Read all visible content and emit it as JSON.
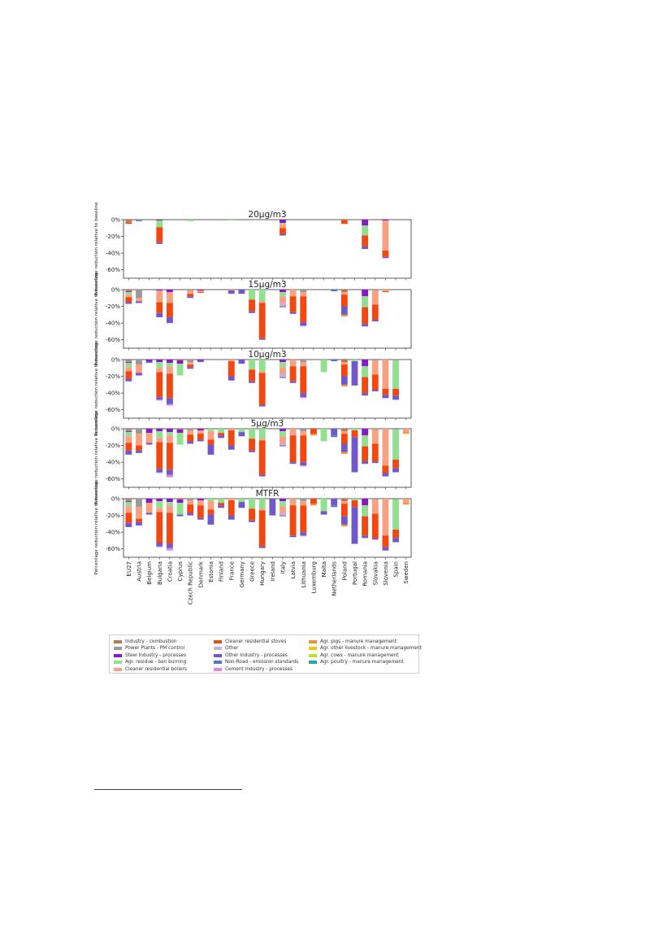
{
  "chart_data": {
    "type": "bar",
    "stacked": true,
    "countries": [
      "EU27",
      "Austria",
      "Belgium",
      "Bulgaria",
      "Croatia",
      "Cyprus",
      "Czech Republic",
      "Denmark",
      "Estonia",
      "Finland",
      "France",
      "Germany",
      "Greece",
      "Hungary",
      "Ireland",
      "Italy",
      "Latvia",
      "Lithuania",
      "Luxemburg",
      "Malta",
      "Netherlands",
      "Poland",
      "Portugal",
      "Romania",
      "Slovakia",
      "Slovenia",
      "Spain",
      "Sweden"
    ],
    "sources": [
      {
        "key": "ind",
        "name": "Industry - combustion",
        "color": "#c4744a"
      },
      {
        "key": "pp",
        "name": "Power Plants - PM control",
        "color": "#9a9a9a"
      },
      {
        "key": "steel",
        "name": "Steel Industry - processes",
        "color": "#8a17c9"
      },
      {
        "key": "agres",
        "name": "Agr. residue - ban burning",
        "color": "#90e08e"
      },
      {
        "key": "boil",
        "name": "Cleaner residential boilers",
        "color": "#f9a080"
      },
      {
        "key": "stove",
        "name": "Cleaner residential stoves",
        "color": "#f4470f"
      },
      {
        "key": "other",
        "name": "Other",
        "color": "#c8b0d8"
      },
      {
        "key": "oind",
        "name": "Other Industry - processes",
        "color": "#7057cc"
      },
      {
        "key": "nonroad",
        "name": "Non-Road - emission standards",
        "color": "#4e78c4"
      },
      {
        "key": "cement",
        "name": "Cement Industry - processes",
        "color": "#e184e8"
      },
      {
        "key": "pigs",
        "name": "Agr. pigs - manure management",
        "color": "#ef9330"
      },
      {
        "key": "olive",
        "name": "Agr. other livestock - manure management",
        "color": "#f2c617"
      },
      {
        "key": "cows",
        "name": "Agr. cows - manure management",
        "color": "#b5e630"
      },
      {
        "key": "poultry",
        "name": "Agr. poultry - manure management",
        "color": "#22a9a5"
      }
    ],
    "yticks": [
      "0%",
      "-20%",
      "-40%",
      "-60%"
    ],
    "ylim": [
      -70,
      0
    ],
    "panels": [
      {
        "title": "20µg/m3",
        "ylabel": "Percentage reduction relative to baseline",
        "bars": [
          {
            "ind": 2,
            "pp": 1,
            "stove": 2
          },
          {
            "pp": 1,
            "nonroad": 1
          },
          {},
          {
            "steel": 1,
            "agres": 8,
            "stove": 18,
            "oind": 2
          },
          {},
          {},
          {
            "agres": 2
          },
          {},
          {},
          {},
          {
            "agres": 1
          },
          {},
          {},
          {},
          {},
          {
            "steel": 4,
            "boil": 4,
            "agres": 2,
            "stove": 7,
            "oind": 2
          },
          {},
          {},
          {},
          {},
          {},
          {
            "ind": 1,
            "stove": 4
          },
          {},
          {
            "steel": 7,
            "agres": 12,
            "stove": 13,
            "oind": 3
          },
          {},
          {
            "steel": 1,
            "boil": 36,
            "stove": 7,
            "oind": 2
          },
          {},
          {}
        ]
      },
      {
        "title": "15µg/m3",
        "ylabel": "Percentage reduction relative to baseline",
        "bars": [
          {
            "ind": 1,
            "pp": 1,
            "steel": 1,
            "agres": 3,
            "boil": 3,
            "stove": 6,
            "oind": 2
          },
          {
            "pp": 10,
            "boil": 4,
            "oind": 2
          },
          {},
          {
            "steel": 1,
            "boil": 14,
            "stove": 13,
            "oind": 5
          },
          {
            "steel": 3,
            "boil": 13,
            "stove": 17,
            "oind": 7
          },
          {},
          {
            "pp": 1,
            "boil": 4,
            "stove": 3,
            "oind": 2
          },
          {
            "steel": 1,
            "boil": 2,
            "stove": 1
          },
          {},
          {},
          {
            "boil": 1,
            "oind": 4
          },
          {
            "oind": 5
          },
          {
            "agres": 12,
            "stove": 14,
            "oind": 2
          },
          {
            "boil": 2,
            "agres": 14,
            "stove": 42,
            "oind": 2
          },
          {},
          {
            "steel": 3,
            "boil": 8,
            "agres": 5,
            "other": 4,
            "oind": 1
          },
          {
            "boil": 8,
            "stove": 19,
            "oind": 2
          },
          {
            "pp": 3,
            "boil": 5,
            "stove": 31,
            "oind": 4,
            "cement": 1
          },
          {},
          {},
          {
            "nonroad": 2
          },
          {
            "ind": 3,
            "boil": 3,
            "stove": 14,
            "oind": 10,
            "pigs": 2
          },
          {},
          {
            "steel": 8,
            "agres": 13,
            "stove": 20,
            "oind": 3
          },
          {
            "pp": 1,
            "boil": 17,
            "stove": 18,
            "oind": 2
          },
          {
            "boil": 2,
            "stove": 1
          },
          {},
          {}
        ]
      },
      {
        "title": "10µg/m3",
        "ylabel": "Percentage reduction relative to baseline",
        "bars": [
          {
            "ind": 1,
            "pp": 2,
            "steel": 1,
            "agres": 5,
            "boil": 5,
            "stove": 9,
            "oind": 3
          },
          {
            "pp": 6,
            "boil": 10,
            "oind": 3
          },
          {
            "steel": 2,
            "oind": 2
          },
          {
            "steel": 3,
            "agres": 7,
            "boil": 5,
            "stove": 30,
            "oind": 3,
            "cement": 1
          },
          {
            "steel": 4,
            "agres": 4,
            "boil": 9,
            "stove": 29,
            "oind": 7,
            "cement": 2
          },
          {
            "steel": 4,
            "agres": 14,
            "ind": 1
          },
          {
            "pp": 3,
            "boil": 3,
            "stove": 3,
            "oind": 2
          },
          {
            "steel": 1,
            "oind": 2
          },
          {},
          {},
          {
            "boil": 2,
            "stove": 18,
            "oind": 5
          },
          {
            "oind": 5
          },
          {
            "agres": 12,
            "stove": 14,
            "oind": 2
          },
          {
            "boil": 2,
            "agres": 14,
            "stove": 38,
            "oind": 2
          },
          {},
          {
            "steel": 3,
            "boil": 8,
            "agres": 6,
            "other": 4,
            "oind": 1
          },
          {
            "boil": 8,
            "stove": 18,
            "oind": 2
          },
          {
            "pp": 3,
            "boil": 5,
            "stove": 32,
            "oind": 5,
            "cement": 1
          },
          {},
          {
            "agres": 15
          },
          {
            "nonroad": 2
          },
          {
            "ind": 3,
            "boil": 3,
            "stove": 14,
            "oind": 10,
            "pigs": 2
          },
          {
            "oind": 29,
            "agres": 2
          },
          {
            "steel": 8,
            "agres": 13,
            "stove": 19,
            "oind": 3
          },
          {
            "pp": 1,
            "boil": 17,
            "stove": 18,
            "oind": 2
          },
          {
            "boil": 35,
            "stove": 7,
            "oind": 4
          },
          {
            "agres": 34,
            "stove": 8,
            "oind": 5,
            "pp": 1
          },
          {}
        ]
      },
      {
        "title": "5µg/m3",
        "ylabel": "Percentage reduction relative to baseline",
        "bars": [
          {
            "ind": 1,
            "pp": 2,
            "steel": 1,
            "agres": 5,
            "boil": 8,
            "stove": 9,
            "oind": 5
          },
          {
            "pp": 6,
            "boil": 14,
            "stove": 6,
            "oind": 3
          },
          {
            "steel": 5,
            "boil": 12,
            "oind": 2
          },
          {
            "steel": 3,
            "agres": 8,
            "boil": 5,
            "stove": 32,
            "oind": 4,
            "cement": 1
          },
          {
            "steel": 4,
            "agres": 4,
            "boil": 9,
            "stove": 32,
            "oind": 6,
            "cement": 3
          },
          {
            "steel": 4,
            "agres": 14,
            "ind": 1
          },
          {
            "pp": 2,
            "boil": 5,
            "stove": 8,
            "oind": 3
          },
          {
            "steel": 2,
            "boil": 4,
            "stove": 7,
            "oind": 2
          },
          {
            "agres": 3,
            "boil": 10,
            "stove": 6,
            "oind": 12
          },
          {
            "agres": 5,
            "stove": 3,
            "oind": 3
          },
          {
            "boil": 2,
            "stove": 18,
            "oind": 5
          },
          {
            "agres": 4,
            "oind": 5
          },
          {
            "agres": 12,
            "stove": 14,
            "oind": 2
          },
          {
            "boil": 2,
            "agres": 12,
            "stove": 41,
            "oind": 2
          },
          {},
          {
            "steel": 3,
            "boil": 8,
            "agres": 6,
            "other": 3,
            "oind": 1
          },
          {
            "boil": 8,
            "stove": 32,
            "oind": 2
          },
          {
            "pp": 3,
            "boil": 5,
            "stove": 32,
            "oind": 4,
            "cement": 1
          },
          {
            "pigs": 2,
            "stove": 6
          },
          {
            "agres": 15
          },
          {
            "nonroad": 2,
            "oind": 8
          },
          {
            "ind": 3,
            "boil": 3,
            "stove": 12,
            "oind": 10,
            "pigs": 2
          },
          {
            "agres": 2,
            "oind": 42,
            "stove": 8
          },
          {
            "steel": 8,
            "agres": 13,
            "stove": 18,
            "oind": 3
          },
          {
            "pp": 1,
            "boil": 17,
            "stove": 21,
            "oind": 2
          },
          {
            "boil": 44,
            "stove": 9,
            "oind": 4
          },
          {
            "agres": 36,
            "stove": 10,
            "oind": 5,
            "pp": 1
          },
          {
            "boil": 4,
            "pigs": 2
          }
        ]
      },
      {
        "title": "MTFR",
        "ylabel": "Percentage reduction relative to baseline",
        "bars": [
          {
            "ind": 1,
            "pp": 2,
            "steel": 1,
            "agres": 5,
            "boil": 8,
            "stove": 12,
            "oind": 5
          },
          {
            "pp": 10,
            "boil": 14,
            "stove": 4,
            "oind": 4
          },
          {
            "steel": 5,
            "boil": 12,
            "oind": 2
          },
          {
            "steel": 3,
            "agres": 8,
            "boil": 5,
            "stove": 37,
            "oind": 4,
            "cement": 1
          },
          {
            "steel": 4,
            "agres": 4,
            "boil": 9,
            "stove": 37,
            "oind": 5,
            "cement": 3
          },
          {
            "steel": 4,
            "agres": 14,
            "ind": 1,
            "oind": 2
          },
          {
            "pp": 2,
            "boil": 5,
            "stove": 10,
            "oind": 3
          },
          {
            "steel": 2,
            "boil": 6,
            "stove": 15,
            "oind": 2
          },
          {
            "agres": 3,
            "boil": 10,
            "stove": 6,
            "oind": 12
          },
          {
            "agres": 5,
            "stove": 3,
            "oind": 3
          },
          {
            "boil": 2,
            "stove": 18,
            "oind": 5
          },
          {
            "agres": 4,
            "oind": 7
          },
          {
            "agres": 12,
            "stove": 14,
            "oind": 2
          },
          {
            "boil": 2,
            "agres": 12,
            "stove": 43,
            "oind": 2
          },
          {
            "oind": 20
          },
          {
            "steel": 3,
            "boil": 8,
            "agres": 6,
            "other": 3,
            "oind": 1
          },
          {
            "boil": 8,
            "stove": 36,
            "oind": 2
          },
          {
            "pp": 3,
            "boil": 5,
            "stove": 32,
            "oind": 4,
            "cement": 1
          },
          {
            "pigs": 2,
            "stove": 6
          },
          {
            "agres": 15,
            "oind": 4
          },
          {
            "nonroad": 2,
            "oind": 8
          },
          {
            "ind": 3,
            "boil": 3,
            "stove": 15,
            "oind": 10,
            "pigs": 2
          },
          {
            "agres": 2,
            "oind": 44,
            "stove": 8
          },
          {
            "steel": 8,
            "agres": 13,
            "stove": 23,
            "oind": 3
          },
          {
            "pp": 1,
            "boil": 17,
            "stove": 29,
            "oind": 2
          },
          {
            "boil": 44,
            "stove": 14,
            "oind": 4
          },
          {
            "agres": 36,
            "stove": 10,
            "oind": 5,
            "pp": 1
          },
          {
            "boil": 5,
            "pigs": 2
          }
        ]
      }
    ]
  }
}
